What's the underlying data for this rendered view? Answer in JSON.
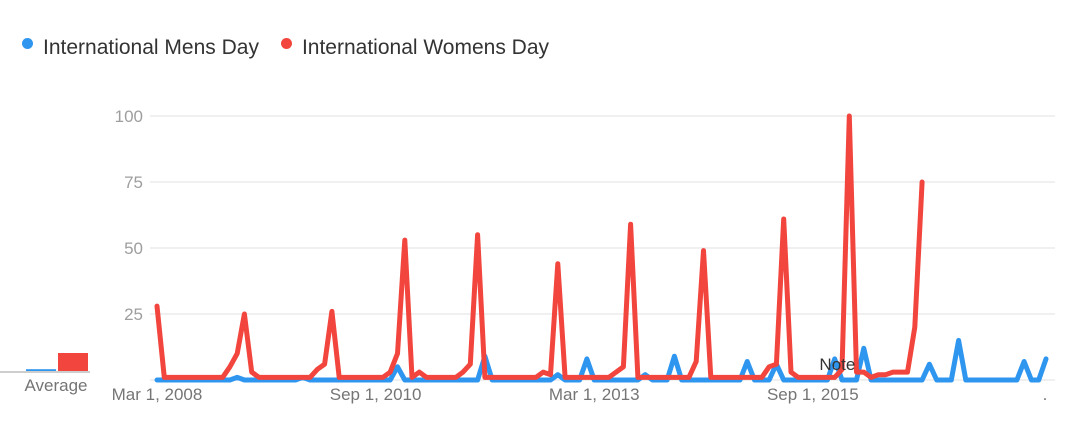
{
  "legend": {
    "items": [
      {
        "label": "International Mens Day",
        "color": "#2f96f0"
      },
      {
        "label": "International Womens Day",
        "color": "#f2453d"
      }
    ]
  },
  "average_label": "Average",
  "chart_data": {
    "type": "line",
    "ylim": [
      0,
      100
    ],
    "yticks": [
      "25",
      "50",
      "75",
      "100"
    ],
    "ytick_values": [
      25,
      50,
      75,
      100
    ],
    "xtick_labels": [
      "Mar 1, 2008",
      "Sep 1, 2010",
      "Mar 1, 2013",
      "Sep 1, 2015"
    ],
    "xtick_indices": [
      0,
      30,
      60,
      90
    ],
    "trailing_label": ".",
    "annotation": "Note",
    "annotation_index": 92,
    "grid": true,
    "series": [
      {
        "name": "International Mens Day",
        "color": "#2f96f0",
        "averages": 1,
        "values": [
          0,
          0,
          0,
          0,
          0,
          0,
          0,
          0,
          0,
          0,
          0,
          1,
          0,
          0,
          0,
          0,
          0,
          0,
          0,
          0,
          1,
          0,
          0,
          0,
          0,
          0,
          0,
          0,
          0,
          0,
          0,
          0,
          0,
          5,
          0,
          0,
          0,
          0,
          0,
          0,
          0,
          0,
          0,
          0,
          0,
          9,
          0,
          0,
          0,
          0,
          0,
          0,
          0,
          0,
          0,
          2,
          0,
          0,
          0,
          8,
          0,
          0,
          0,
          0,
          0,
          0,
          0,
          2,
          0,
          0,
          0,
          9,
          0,
          0,
          0,
          0,
          0,
          0,
          0,
          0,
          0,
          7,
          0,
          0,
          0,
          6,
          0,
          0,
          0,
          0,
          0,
          0,
          0,
          8,
          0,
          0,
          0,
          12,
          0,
          0,
          0,
          0,
          0,
          0,
          0,
          0,
          6,
          0,
          0,
          0,
          15,
          0,
          0,
          0,
          0,
          0,
          0,
          0,
          0,
          7,
          0,
          0,
          8
        ],
        "dotted_tail_from": null
      },
      {
        "name": "International Womens Day",
        "color": "#f2453d",
        "averages": 10,
        "values": [
          28,
          1,
          1,
          1,
          1,
          1,
          1,
          1,
          1,
          1,
          5,
          10,
          25,
          3,
          1,
          1,
          1,
          1,
          1,
          1,
          1,
          1,
          4,
          6,
          26,
          1,
          1,
          1,
          1,
          1,
          1,
          1,
          3,
          10,
          53,
          1,
          3,
          1,
          1,
          1,
          1,
          1,
          3,
          6,
          55,
          1,
          1,
          1,
          1,
          1,
          1,
          1,
          1,
          3,
          2,
          44,
          1,
          1,
          1,
          1,
          1,
          1,
          1,
          3,
          5,
          59,
          1,
          1,
          1,
          1,
          1,
          1,
          1,
          1,
          7,
          49,
          1,
          1,
          1,
          1,
          1,
          1,
          1,
          1,
          5,
          6,
          61,
          3,
          1,
          1,
          1,
          1,
          1,
          1,
          4,
          100,
          3,
          3,
          1,
          2,
          2,
          3,
          3,
          3,
          20,
          75
        ],
        "dotted_tail_from": 105
      }
    ]
  }
}
